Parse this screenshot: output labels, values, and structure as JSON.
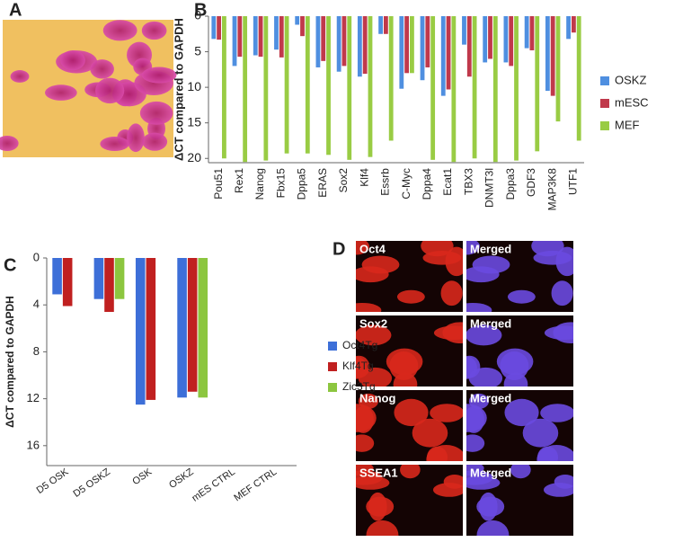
{
  "panel_labels": [
    "A",
    "B",
    "C",
    "D"
  ],
  "chart_data": [
    {
      "type": "bar",
      "y_label": "ΔCT compared to GAPDH",
      "y_inverted": true,
      "legend": "right",
      "categories": [
        "Pou51",
        "Rex1",
        "Nanog",
        "Fbx15",
        "Dppa5",
        "ERAS",
        "Sox2",
        "Klf4",
        "Essrb",
        "C-Myc",
        "Dppa4",
        "Ecat1",
        "TBX3",
        "DNMT3l",
        "Dppa3",
        "GDF3",
        "MAP3K8",
        "UTF1"
      ],
      "series": [
        {
          "name": "OSKZ",
          "color": "#4f8fe0",
          "values": [
            3.2,
            7,
            5.5,
            4.7,
            1.2,
            7.2,
            7.8,
            8.5,
            2.5,
            10.2,
            9,
            11.2,
            4,
            6.5,
            6.5,
            4.5,
            10.5,
            3.2
          ]
        },
        {
          "name": "mESC",
          "color": "#c0394b",
          "values": [
            3.3,
            5.7,
            5.7,
            5.8,
            2.8,
            6.3,
            7,
            8.1,
            2.5,
            8,
            7.2,
            10.3,
            8.5,
            6,
            7,
            4.8,
            11.2,
            2.3
          ]
        },
        {
          "name": "MEF",
          "color": "#99cc44",
          "values": [
            20,
            20.5,
            20.3,
            19.3,
            19.3,
            19.5,
            20.2,
            19.8,
            17.5,
            8,
            20.2,
            20.5,
            20,
            20.5,
            20.3,
            19,
            14.8,
            17.5
          ]
        }
      ],
      "ylim": [
        0,
        20.6
      ],
      "yticks": [
        0,
        5,
        10,
        15,
        20
      ]
    },
    {
      "type": "bar",
      "y_label": "ΔCT compared to GAPDH",
      "y_inverted": true,
      "legend": "right",
      "categories": [
        "D5 OSK",
        "D5 OSKZ",
        "OSK",
        "OSKZ",
        "mES CTRL",
        "MEF CTRL"
      ],
      "series": [
        {
          "name": "Oct4Tg",
          "color": "#3d6fd8",
          "values": [
            3.1,
            3.5,
            12.5,
            11.9,
            null,
            null
          ]
        },
        {
          "name": "Klf4Tg",
          "color": "#c02020",
          "values": [
            4.1,
            4.6,
            12.1,
            11.4,
            null,
            null
          ]
        },
        {
          "name": "Zic3Tg",
          "color": "#8cc63f",
          "values": [
            null,
            3.5,
            null,
            11.9,
            null,
            null
          ]
        }
      ],
      "ylim": [
        0,
        17.7
      ],
      "yticks": [
        0,
        4,
        8,
        12,
        16
      ]
    }
  ],
  "image_panel": {
    "rows": [
      [
        "Oct4",
        "Merged"
      ],
      [
        "Sox2",
        "Merged"
      ],
      [
        "Nanog",
        "Merged"
      ],
      [
        "SSEA1",
        "Merged"
      ]
    ]
  }
}
